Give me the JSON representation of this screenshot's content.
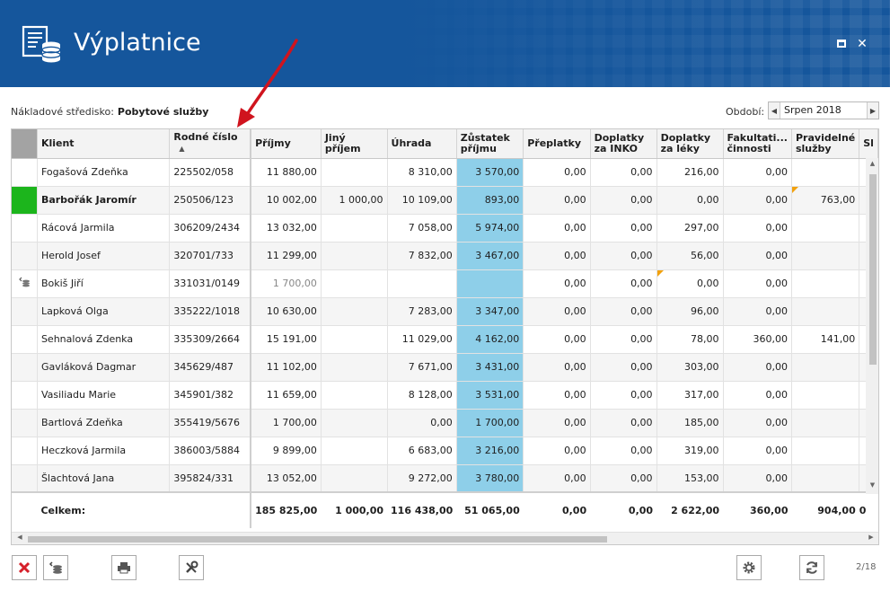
{
  "window": {
    "title": "Výplatnice",
    "maximize_label": "",
    "close_label": "✕"
  },
  "filters": {
    "cost_center_label": "Nákladové středisko:",
    "cost_center_value": "Pobytové služby",
    "period_label": "Období:",
    "period_value": "Srpen 2018"
  },
  "table": {
    "columns": [
      "Klient",
      "Rodné číslo",
      "Příjmy",
      "Jiný příjem",
      "Úhrada",
      "Zůstatek příjmu",
      "Přeplatky",
      "Doplatky za INKO",
      "Doplatky za léky",
      "Fakultati... činnosti",
      "Pravidelné služby",
      "Sl"
    ],
    "rows": [
      {
        "name": "Fogašová Zdeňka",
        "rc": "225502/058",
        "prijmy": "11 880,00",
        "jiny": "",
        "uhrada": "8 310,00",
        "zustatek": "3 570,00",
        "preplatky": "0,00",
        "inko": "0,00",
        "leky": "216,00",
        "fak": "0,00",
        "prav": ""
      },
      {
        "name": "Barbořák Jaromír",
        "rc": "250506/123",
        "prijmy": "10 002,00",
        "jiny": "1 000,00",
        "uhrada": "10 109,00",
        "zustatek": "893,00",
        "preplatky": "0,00",
        "inko": "0,00",
        "leky": "0,00",
        "fak": "0,00",
        "prav": "763,00"
      },
      {
        "name": "Rácová Jarmila",
        "rc": "306209/2434",
        "prijmy": "13 032,00",
        "jiny": "",
        "uhrada": "7 058,00",
        "zustatek": "5 974,00",
        "preplatky": "0,00",
        "inko": "0,00",
        "leky": "297,00",
        "fak": "0,00",
        "prav": ""
      },
      {
        "name": "Herold Josef",
        "rc": "320701/733",
        "prijmy": "11 299,00",
        "jiny": "",
        "uhrada": "7 832,00",
        "zustatek": "3 467,00",
        "preplatky": "0,00",
        "inko": "0,00",
        "leky": "56,00",
        "fak": "0,00",
        "prav": ""
      },
      {
        "name": "Bokiš Jiří",
        "rc": "331031/0149",
        "prijmy": "1 700,00",
        "jiny": "",
        "uhrada": "",
        "zustatek": "",
        "preplatky": "0,00",
        "inko": "0,00",
        "leky": "0,00",
        "fak": "0,00",
        "prav": ""
      },
      {
        "name": "Lapková Olga",
        "rc": "335222/1018",
        "prijmy": "10 630,00",
        "jiny": "",
        "uhrada": "7 283,00",
        "zustatek": "3 347,00",
        "preplatky": "0,00",
        "inko": "0,00",
        "leky": "96,00",
        "fak": "0,00",
        "prav": ""
      },
      {
        "name": "Sehnalová Zdenka",
        "rc": "335309/2664",
        "prijmy": "15 191,00",
        "jiny": "",
        "uhrada": "11 029,00",
        "zustatek": "4 162,00",
        "preplatky": "0,00",
        "inko": "0,00",
        "leky": "78,00",
        "fak": "360,00",
        "prav": "141,00"
      },
      {
        "name": "Gavláková Dagmar",
        "rc": "345629/487",
        "prijmy": "11 102,00",
        "jiny": "",
        "uhrada": "7 671,00",
        "zustatek": "3 431,00",
        "preplatky": "0,00",
        "inko": "0,00",
        "leky": "303,00",
        "fak": "0,00",
        "prav": ""
      },
      {
        "name": "Vasiliadu Marie",
        "rc": "345901/382",
        "prijmy": "11 659,00",
        "jiny": "",
        "uhrada": "8 128,00",
        "zustatek": "3 531,00",
        "preplatky": "0,00",
        "inko": "0,00",
        "leky": "317,00",
        "fak": "0,00",
        "prav": ""
      },
      {
        "name": "Bartlová Zdeňka",
        "rc": "355419/5676",
        "prijmy": "1 700,00",
        "jiny": "",
        "uhrada": "0,00",
        "zustatek": "1 700,00",
        "preplatky": "0,00",
        "inko": "0,00",
        "leky": "185,00",
        "fak": "0,00",
        "prav": ""
      },
      {
        "name": "Heczková Jarmila",
        "rc": "386003/5884",
        "prijmy": "9 899,00",
        "jiny": "",
        "uhrada": "6 683,00",
        "zustatek": "3 216,00",
        "preplatky": "0,00",
        "inko": "0,00",
        "leky": "319,00",
        "fak": "0,00",
        "prav": ""
      },
      {
        "name": "Šlachtová Jana",
        "rc": "395824/331",
        "prijmy": "13 052,00",
        "jiny": "",
        "uhrada": "9 272,00",
        "zustatek": "3 780,00",
        "preplatky": "0,00",
        "inko": "0,00",
        "leky": "153,00",
        "fak": "0,00",
        "prav": ""
      }
    ],
    "totals": {
      "label": "Celkem:",
      "prijmy": "185 825,00",
      "jiny": "1 000,00",
      "uhrada": "116 438,00",
      "zustatek": "51 065,00",
      "preplatky": "0,00",
      "inko": "0,00",
      "leky": "2 622,00",
      "fak": "360,00",
      "prav": "904,00",
      "sl": "0"
    }
  },
  "footer": {
    "page_count": "2/18"
  },
  "colors": {
    "header": "#15569c",
    "highlight": "#8ecfe9",
    "status_green": "#1cb51c",
    "arrow": "#d0141e"
  }
}
